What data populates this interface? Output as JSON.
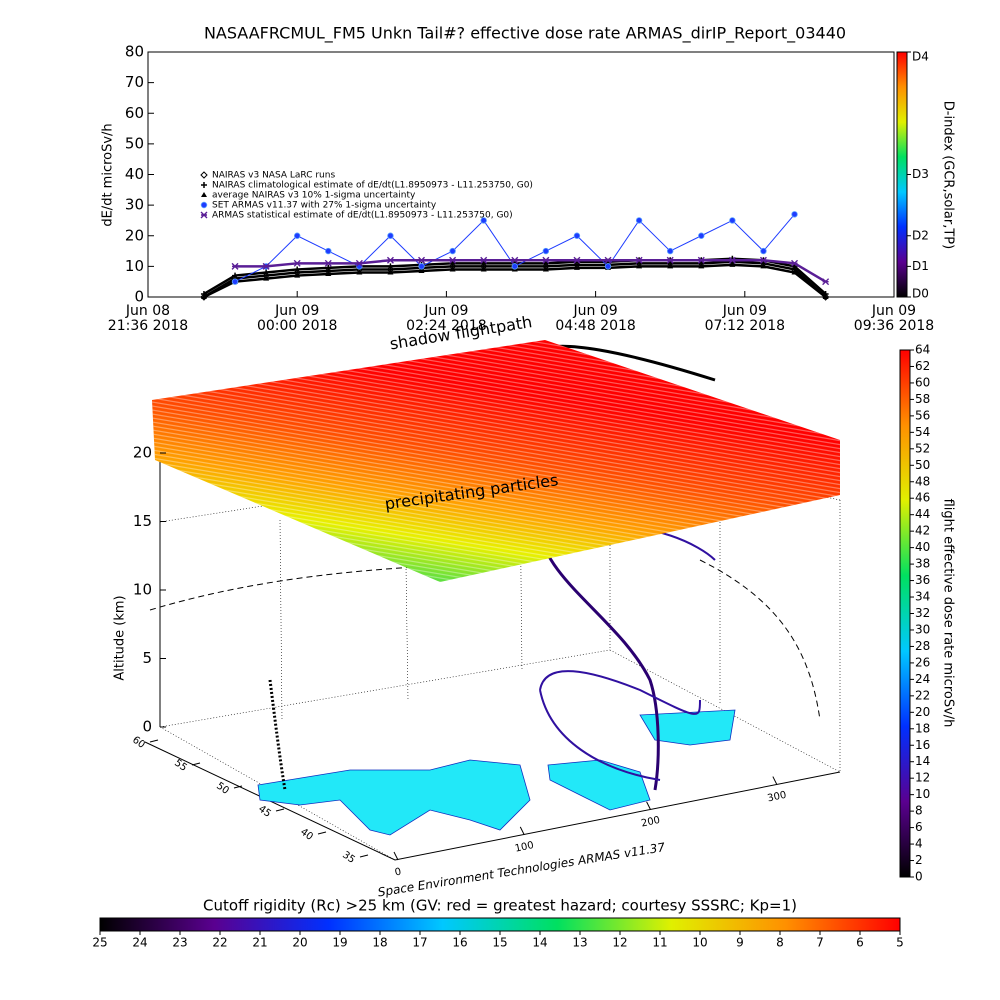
{
  "chart_data": [
    {
      "type": "line",
      "title": "NASAAFRCMUL_FM5 Unkn Tail#? effective dose rate ARMAS_dirIP_Report_03440",
      "ylabel": "dE/dt microSv/h",
      "x": [
        "2018-06-08T22:30",
        "2018-06-08T23:00",
        "2018-06-08T23:30",
        "2018-06-09T00:00",
        "2018-06-09T00:30",
        "2018-06-09T01:00",
        "2018-06-09T01:30",
        "2018-06-09T02:00",
        "2018-06-09T02:30",
        "2018-06-09T03:00",
        "2018-06-09T03:30",
        "2018-06-09T04:00",
        "2018-06-09T04:30",
        "2018-06-09T05:00",
        "2018-06-09T05:30",
        "2018-06-09T06:00",
        "2018-06-09T06:30",
        "2018-06-09T07:00",
        "2018-06-09T07:30",
        "2018-06-09T08:00",
        "2018-06-09T08:30"
      ],
      "series": [
        {
          "name": "NAIRAS v3 NASA LaRC runs",
          "color": "#000000",
          "marker": "diamond",
          "values": [
            0,
            6,
            7,
            8,
            8.5,
            9,
            9,
            9.5,
            10,
            10,
            10,
            10,
            10.5,
            10.5,
            11,
            11,
            11,
            11.5,
            11,
            9,
            0
          ]
        },
        {
          "name": "NAIRAS climatological estimate of dE/dt(L1.8950973 - L11.253750, G0)",
          "color": "#000000",
          "marker": "plus",
          "values": [
            1,
            7,
            8,
            9,
            9.5,
            10,
            10,
            10.5,
            11,
            11,
            11,
            11,
            11.5,
            11.5,
            12,
            12,
            12,
            12.5,
            12,
            10,
            1
          ]
        },
        {
          "name": "average NAIRAS v3 10% 1-sigma uncertainty",
          "color": "#000000",
          "marker": "triangle",
          "values": [
            0,
            5,
            6,
            7,
            7.5,
            8,
            8,
            8.5,
            9,
            9,
            9,
            9,
            9.5,
            9.5,
            10,
            10,
            10,
            10.5,
            10,
            8,
            0
          ]
        },
        {
          "name": "SET ARMAS v11.37 with 27% 1-sigma uncertainty",
          "color": "#1e3cff",
          "marker": "circle",
          "values": [
            null,
            5,
            10,
            20,
            15,
            10,
            20,
            10,
            15,
            25,
            10,
            15,
            20,
            10,
            25,
            15,
            20,
            25,
            15,
            27,
            null
          ]
        },
        {
          "name": "ARMAS statistical estimate of dE/dt(L1.8950973 - L11.253750, G0)",
          "color": "#5a1e96",
          "marker": "star",
          "values": [
            null,
            10,
            10,
            11,
            11,
            11,
            12,
            12,
            12,
            12,
            12,
            12,
            12,
            12,
            12,
            12,
            12,
            12,
            12,
            11,
            5
          ]
        }
      ],
      "xlim": [
        "2018-06-08T21:36",
        "2018-06-09T09:36"
      ],
      "xticks": [
        {
          "value": "2018-06-08T21:36",
          "label": [
            "Jun 08",
            "21:36 2018"
          ]
        },
        {
          "value": "2018-06-09T00:00",
          "label": [
            "Jun 09",
            "00:00 2018"
          ]
        },
        {
          "value": "2018-06-09T02:24",
          "label": [
            "Jun 09",
            "02:24 2018"
          ]
        },
        {
          "value": "2018-06-09T04:48",
          "label": [
            "Jun 09",
            "04:48 2018"
          ]
        },
        {
          "value": "2018-06-09T07:12",
          "label": [
            "Jun 09",
            "07:12 2018"
          ]
        },
        {
          "value": "2018-06-09T09:36",
          "label": [
            "Jun 09",
            "09:36 2018"
          ]
        }
      ],
      "ylim": [
        0,
        80
      ],
      "yticks": [
        0,
        10,
        20,
        30,
        40,
        50,
        60,
        70,
        80
      ],
      "colorbar": {
        "label": "D-index (GCR,solar,TP)",
        "lim": [
          0,
          80
        ],
        "ticks": [
          {
            "value": 0,
            "label": "D0"
          },
          {
            "value": 10,
            "label": "D1"
          },
          {
            "value": 20,
            "label": "D2"
          },
          {
            "value": 40,
            "label": "D3"
          },
          {
            "value": 80,
            "label": "D4"
          }
        ],
        "colors": [
          "#000000",
          "#5a0090",
          "#0030ff",
          "#00c8ff",
          "#00e060",
          "#e0f000",
          "#ff9000",
          "#ff0000"
        ]
      }
    },
    {
      "type": "surface3d",
      "zlabel": "Altitude (km)",
      "annotations": [
        "shadow flightpath",
        "precipitating particles",
        "Space Environment Technologies ARMAS v11.37"
      ],
      "zlim": [
        0,
        20
      ],
      "zticks": [
        0,
        5,
        10,
        15,
        20
      ],
      "latlim": [
        35,
        60
      ],
      "latticks": [
        35,
        40,
        45,
        50,
        55,
        60
      ],
      "lonlim": [
        0,
        350
      ],
      "lonticks": [
        0,
        100,
        200,
        300
      ],
      "colorbar": {
        "label": "flight effective dose rate microSv/h",
        "lim": [
          0,
          64
        ],
        "ticks": [
          0,
          2,
          4,
          6,
          8,
          10,
          12,
          14,
          16,
          18,
          20,
          22,
          24,
          26,
          28,
          30,
          32,
          34,
          36,
          38,
          40,
          42,
          44,
          46,
          48,
          50,
          52,
          54,
          56,
          58,
          60,
          62,
          64
        ],
        "colors": [
          "#000000",
          "#5a0090",
          "#0030ff",
          "#00c8ff",
          "#00e060",
          "#e0f000",
          "#ff9000",
          "#ff0000"
        ]
      },
      "colorbar2": {
        "label": "Cutoff rigidity (Rc) >25 km (GV: red = greatest hazard; courtesy SSSRC; Kp=1)",
        "lim": [
          25,
          5
        ],
        "ticks": [
          25,
          24,
          23,
          22,
          21,
          20,
          19,
          18,
          17,
          16,
          15,
          14,
          13,
          12,
          11,
          10,
          9,
          8,
          7,
          6,
          5
        ],
        "colors": [
          "#000000",
          "#5a0090",
          "#0030ff",
          "#00c8ff",
          "#00e060",
          "#e0f000",
          "#ff9000",
          "#ff0000"
        ]
      }
    }
  ]
}
